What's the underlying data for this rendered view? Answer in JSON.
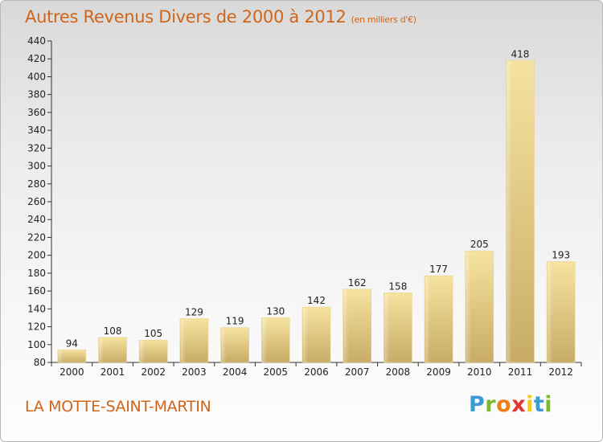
{
  "title": {
    "main": "Autres Revenus Divers de 2000 à 2012",
    "unit": "(en milliers d'€)"
  },
  "place_name": "LA MOTTE-SAINT-MARTIN",
  "logo": {
    "text": "Proxiti",
    "letter_colors": [
      "#3b9bd3",
      "#7cba2b",
      "#f07e14",
      "#e3342f",
      "#f5c61c",
      "#3b9bd3",
      "#7cba2b"
    ]
  },
  "colors": {
    "title": "#d0651a",
    "bar_light": "#f6e3a0",
    "bar_dark": "#c8ac66"
  },
  "chart_data": {
    "type": "bar",
    "categories": [
      "2000",
      "2001",
      "2002",
      "2003",
      "2004",
      "2005",
      "2006",
      "2007",
      "2008",
      "2009",
      "2010",
      "2011",
      "2012"
    ],
    "values": [
      94,
      108,
      105,
      129,
      119,
      130,
      142,
      162,
      158,
      177,
      205,
      418,
      193
    ],
    "title": "Autres Revenus Divers de 2000 à 2012",
    "subtitle": "(en milliers d'€)",
    "xlabel": "",
    "ylabel": "",
    "ylim": [
      80,
      440
    ],
    "yticks": [
      80,
      100,
      120,
      140,
      160,
      180,
      200,
      220,
      240,
      260,
      280,
      300,
      320,
      340,
      360,
      380,
      400,
      420,
      440
    ],
    "grid": false,
    "legend": "none"
  }
}
